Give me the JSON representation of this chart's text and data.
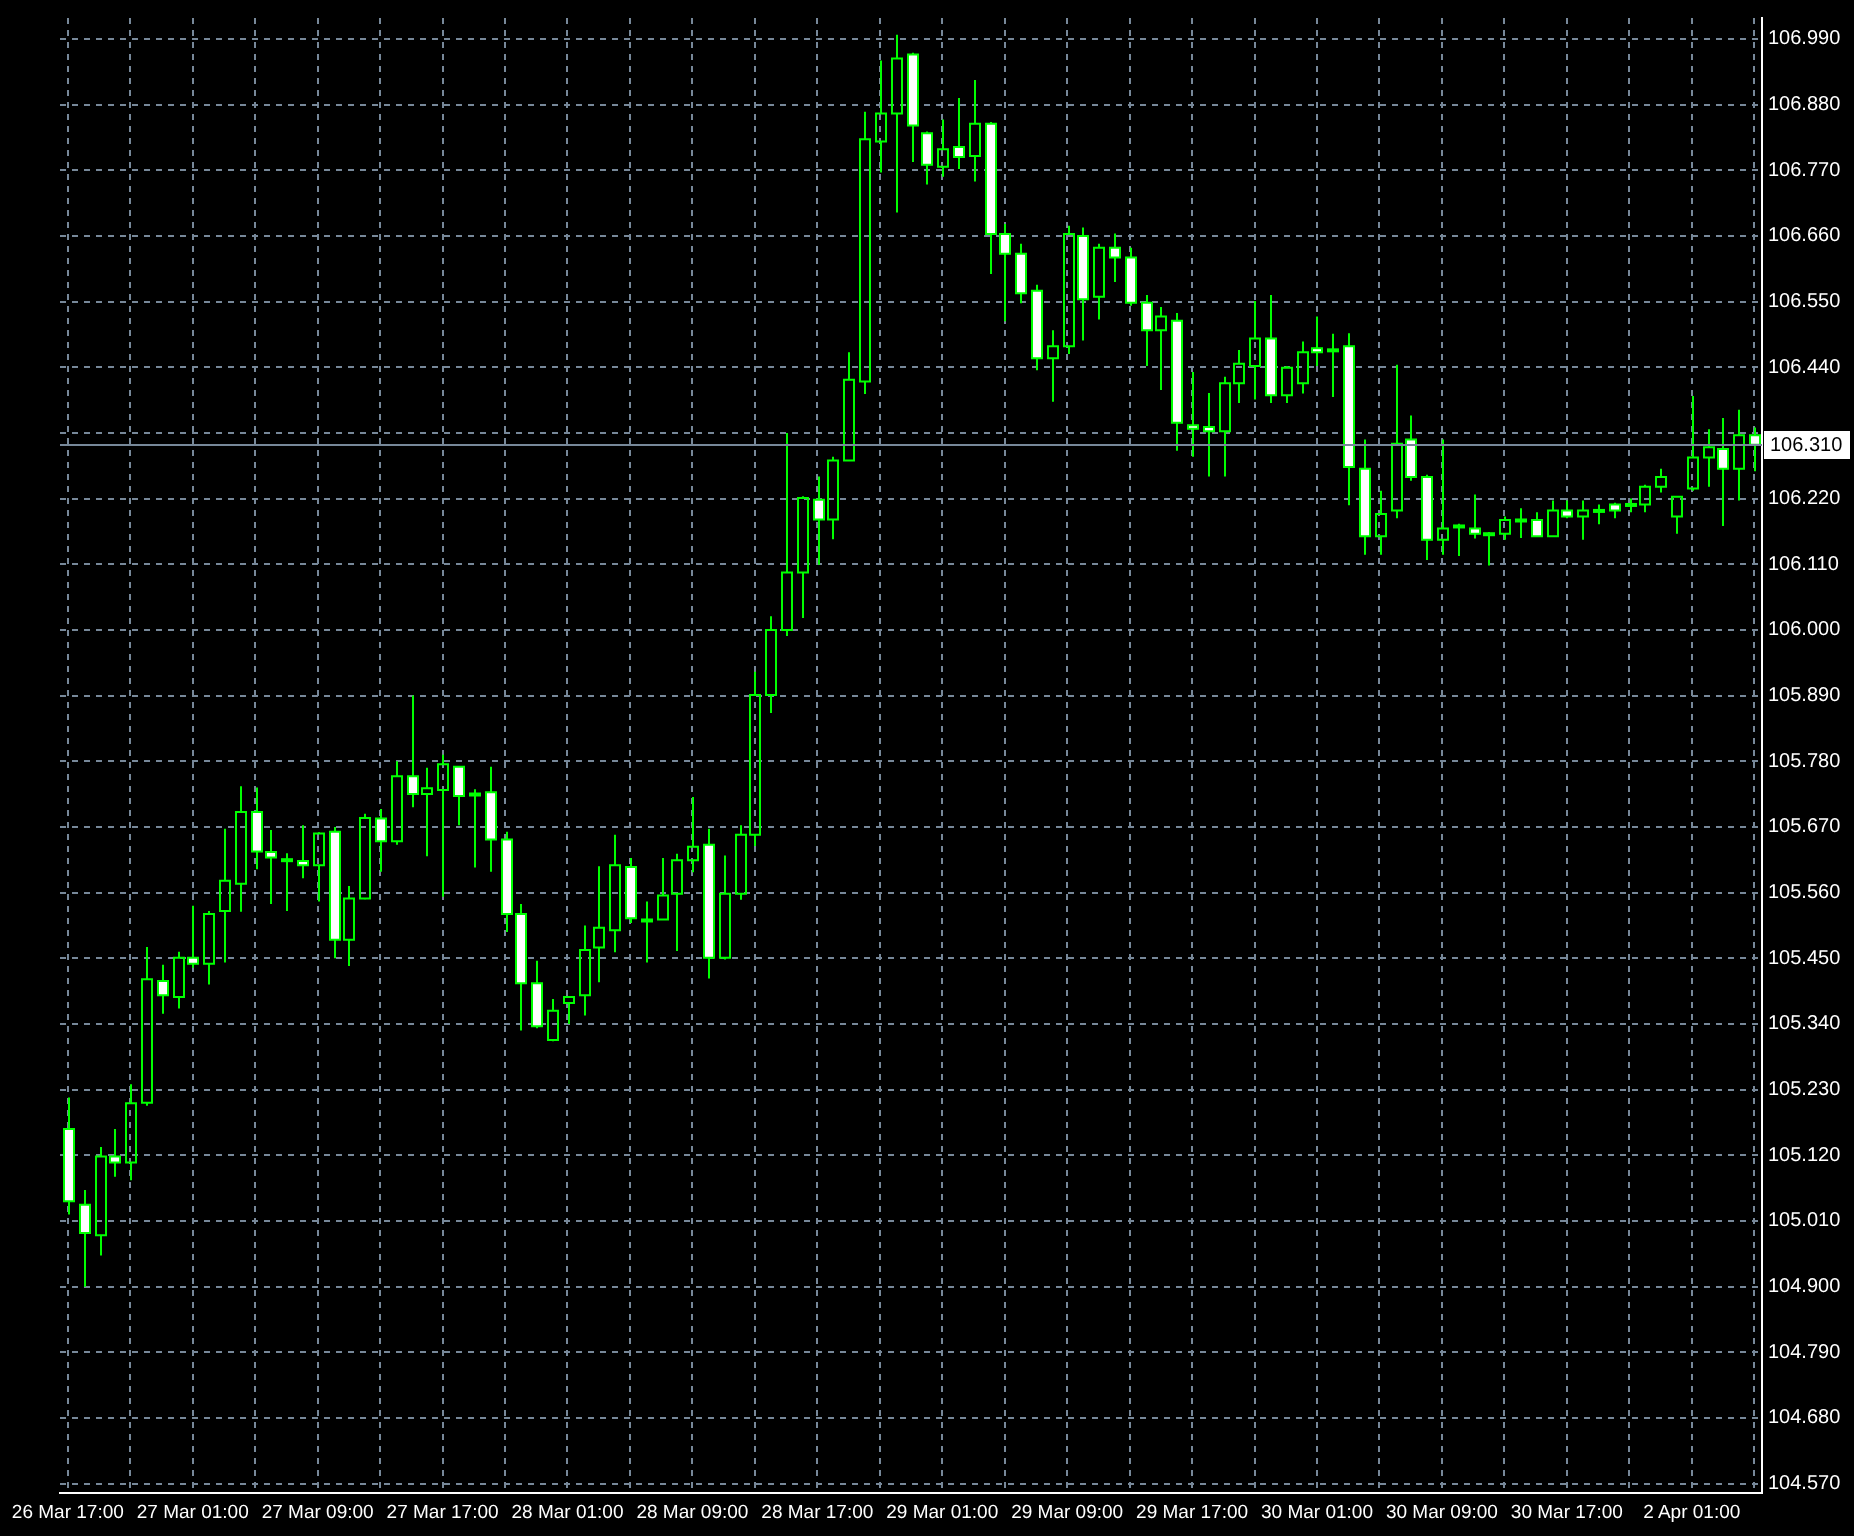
{
  "chart_data": {
    "type": "candlestick",
    "color": "#00ff00",
    "categories": [
      "26 Mar 17:00",
      null,
      null,
      null,
      null,
      null,
      null,
      null,
      "27 Mar 01:00",
      null,
      null,
      null,
      null,
      null,
      null,
      null,
      "27 Mar 09:00",
      null,
      null,
      null,
      null,
      null,
      null,
      null,
      "27 Mar 17:00",
      null,
      null,
      null,
      null,
      null,
      null,
      null,
      "28 Mar 01:00",
      null,
      null,
      null,
      null,
      null,
      null,
      null,
      "28 Mar 09:00",
      null,
      null,
      null,
      null,
      null,
      null,
      null,
      "28 Mar 17:00",
      null,
      null,
      null,
      null,
      null,
      null,
      null,
      "29 Mar 01:00",
      null,
      null,
      null,
      null,
      null,
      null,
      null,
      "29 Mar 09:00",
      null,
      null,
      null,
      null,
      null,
      null,
      null,
      "29 Mar 17:00",
      null,
      null,
      null,
      null,
      null,
      null,
      null,
      "30 Mar 01:00",
      null,
      null,
      null,
      null,
      null,
      null,
      null,
      "30 Mar 09:00",
      null,
      null,
      null,
      null,
      null,
      null,
      null,
      "30 Mar 17:00",
      null,
      null,
      null,
      null,
      null,
      null,
      null,
      "2 Apr 01:00",
      null,
      null,
      null,
      null
    ],
    "ohlc": [
      [
        105.164,
        105.217,
        105.021,
        105.043
      ],
      [
        105.037,
        105.062,
        104.9,
        104.99
      ],
      [
        104.986,
        105.134,
        104.952,
        105.118
      ],
      [
        105.118,
        105.164,
        105.084,
        105.108
      ],
      [
        105.108,
        105.239,
        105.078,
        105.207
      ],
      [
        105.208,
        105.469,
        105.203,
        105.415
      ],
      [
        105.412,
        105.439,
        105.357,
        105.388
      ],
      [
        105.385,
        105.461,
        105.366,
        105.451
      ],
      [
        105.451,
        105.538,
        105.434,
        105.441
      ],
      [
        105.441,
        105.529,
        105.406,
        105.524
      ],
      [
        105.529,
        105.667,
        105.443,
        105.58
      ],
      [
        105.575,
        105.738,
        105.528,
        105.695
      ],
      [
        105.695,
        105.736,
        105.599,
        105.629
      ],
      [
        105.628,
        105.665,
        105.541,
        105.619
      ],
      [
        105.616,
        105.626,
        105.529,
        105.614
      ],
      [
        105.613,
        105.673,
        105.584,
        105.606
      ],
      [
        105.606,
        105.661,
        105.545,
        105.659
      ],
      [
        105.662,
        105.67,
        105.45,
        105.481
      ],
      [
        105.481,
        105.571,
        105.437,
        105.55
      ],
      [
        105.55,
        105.692,
        105.549,
        105.685
      ],
      [
        105.684,
        105.7,
        105.595,
        105.646
      ],
      [
        105.646,
        105.78,
        105.64,
        105.755
      ],
      [
        105.755,
        105.89,
        105.703,
        105.725
      ],
      [
        105.725,
        105.769,
        105.621,
        105.735
      ],
      [
        105.732,
        105.791,
        105.553,
        105.775
      ],
      [
        105.771,
        105.772,
        105.673,
        105.722
      ],
      [
        105.726,
        105.733,
        105.602,
        105.724
      ],
      [
        105.728,
        105.771,
        105.595,
        105.649
      ],
      [
        105.649,
        105.662,
        105.494,
        105.524
      ],
      [
        105.524,
        105.541,
        105.329,
        105.408
      ],
      [
        105.408,
        105.446,
        105.333,
        105.336
      ],
      [
        105.313,
        105.382,
        105.311,
        105.362
      ],
      [
        105.375,
        105.386,
        105.34,
        105.385
      ],
      [
        105.388,
        105.505,
        105.354,
        105.464
      ],
      [
        105.468,
        105.604,
        105.41,
        105.501
      ],
      [
        105.497,
        105.657,
        105.46,
        105.606
      ],
      [
        105.603,
        105.618,
        105.509,
        105.517
      ],
      [
        105.515,
        105.545,
        105.443,
        105.513
      ],
      [
        105.515,
        105.618,
        105.514,
        105.555
      ],
      [
        105.558,
        105.625,
        105.462,
        105.614
      ],
      [
        105.614,
        105.72,
        105.594,
        105.637
      ],
      [
        105.64,
        105.667,
        105.416,
        105.451
      ],
      [
        105.451,
        105.622,
        105.448,
        105.558
      ],
      [
        105.558,
        105.673,
        105.548,
        105.657
      ],
      [
        105.657,
        105.93,
        105.638,
        105.891
      ],
      [
        105.891,
        106.023,
        105.861,
        106.0
      ],
      [
        106.0,
        106.33,
        105.99,
        106.096
      ],
      [
        106.096,
        106.224,
        106.02,
        106.221
      ],
      [
        106.218,
        106.257,
        106.109,
        106.185
      ],
      [
        106.185,
        106.29,
        106.152,
        106.284
      ],
      [
        106.284,
        106.465,
        106.283,
        106.419
      ],
      [
        106.416,
        106.868,
        106.395,
        106.822
      ],
      [
        106.818,
        106.954,
        106.766,
        106.865
      ],
      [
        106.865,
        106.997,
        106.699,
        106.957
      ],
      [
        106.964,
        106.967,
        106.784,
        106.845
      ],
      [
        106.832,
        106.835,
        106.746,
        106.779
      ],
      [
        106.776,
        106.855,
        106.759,
        106.805
      ],
      [
        106.809,
        106.891,
        106.772,
        106.792
      ],
      [
        106.794,
        106.921,
        106.751,
        106.848
      ],
      [
        106.848,
        106.851,
        106.596,
        106.663
      ],
      [
        106.663,
        106.68,
        106.517,
        106.63
      ],
      [
        106.63,
        106.647,
        106.547,
        106.564
      ],
      [
        106.568,
        106.578,
        106.435,
        106.455
      ],
      [
        106.455,
        106.502,
        106.382,
        106.475
      ],
      [
        106.475,
        106.677,
        106.462,
        106.663
      ],
      [
        106.66,
        106.674,
        106.485,
        106.554
      ],
      [
        106.558,
        106.647,
        106.52,
        106.64
      ],
      [
        106.64,
        106.664,
        106.583,
        106.624
      ],
      [
        106.624,
        106.64,
        106.543,
        106.548
      ],
      [
        106.548,
        106.561,
        106.442,
        106.502
      ],
      [
        106.502,
        106.541,
        106.402,
        106.525
      ],
      [
        106.518,
        106.531,
        106.3,
        106.347
      ],
      [
        106.343,
        106.432,
        106.29,
        106.337
      ],
      [
        106.34,
        106.397,
        106.257,
        106.333
      ],
      [
        106.333,
        106.424,
        106.257,
        106.413
      ],
      [
        106.413,
        106.469,
        106.38,
        106.446
      ],
      [
        106.442,
        106.551,
        106.386,
        106.488
      ],
      [
        106.488,
        106.561,
        106.38,
        106.393
      ],
      [
        106.393,
        106.442,
        106.38,
        106.439
      ],
      [
        106.413,
        106.483,
        106.396,
        106.465
      ],
      [
        106.472,
        106.525,
        106.442,
        106.465
      ],
      [
        106.47,
        106.496,
        106.39,
        106.468
      ],
      [
        106.475,
        106.497,
        106.209,
        106.273
      ],
      [
        106.27,
        106.319,
        106.126,
        106.157
      ],
      [
        106.157,
        106.233,
        106.126,
        106.194
      ],
      [
        106.2,
        106.444,
        106.187,
        106.312
      ],
      [
        106.319,
        106.359,
        106.25,
        106.256
      ],
      [
        106.256,
        106.26,
        106.117,
        106.151
      ],
      [
        106.151,
        106.319,
        106.126,
        106.17
      ],
      [
        106.175,
        106.178,
        106.124,
        106.173
      ],
      [
        106.17,
        106.227,
        106.153,
        106.161
      ],
      [
        106.162,
        106.164,
        106.108,
        106.16
      ],
      [
        106.161,
        106.19,
        106.151,
        106.184
      ],
      [
        106.185,
        106.204,
        106.154,
        106.183
      ],
      [
        106.184,
        106.197,
        106.156,
        106.157
      ],
      [
        106.157,
        106.217,
        106.156,
        106.2
      ],
      [
        106.2,
        106.217,
        106.187,
        106.19
      ],
      [
        106.19,
        106.217,
        106.151,
        106.2
      ],
      [
        106.201,
        106.21,
        106.177,
        106.199
      ],
      [
        106.21,
        106.213,
        106.187,
        106.2
      ],
      [
        106.211,
        106.22,
        106.197,
        106.209
      ],
      [
        106.21,
        106.243,
        106.197,
        106.24
      ],
      [
        106.24,
        106.27,
        106.23,
        106.256
      ],
      [
        106.19,
        106.224,
        106.161,
        106.223
      ],
      [
        106.237,
        106.392,
        106.233,
        106.289
      ],
      [
        106.289,
        106.336,
        106.24,
        106.306
      ],
      [
        106.303,
        106.355,
        106.174,
        106.27
      ],
      [
        106.27,
        106.369,
        106.217,
        106.326
      ],
      [
        106.326,
        106.339,
        106.266,
        106.31
      ]
    ],
    "colors": [
      "#ffffff",
      "#ffffff",
      "#00ff00",
      "#ffffff",
      "#00ff00",
      "#00ff00",
      "#ffffff",
      "#00ff00",
      "#ffffff",
      "#00ff00",
      "#00ff00",
      "#00ff00",
      "#ffffff",
      "#ffffff",
      "#ffffff",
      "#ffffff",
      "#00ff00",
      "#ffffff",
      "#00ff00",
      "#00ff00",
      "#ffffff",
      "#00ff00",
      "#ffffff",
      "#00ff00",
      "#00ff00",
      "#ffffff",
      "#ffffff",
      "#ffffff",
      "#ffffff",
      "#ffffff",
      "#ffffff",
      "#00ff00",
      "#00ff00",
      "#00ff00",
      "#00ff00",
      "#00ff00",
      "#ffffff",
      "#ffffff",
      "#00ff00",
      "#00ff00",
      "#00ff00",
      "#ffffff",
      "#00ff00",
      "#00ff00",
      "#00ff00",
      "#00ff00",
      "#00ff00",
      "#00ff00",
      "#ffffff",
      "#00ff00",
      "#00ff00",
      "#00ff00",
      "#00ff00",
      "#00ff00",
      "#ffffff",
      "#ffffff",
      "#00ff00",
      "#ffffff",
      "#00ff00",
      "#ffffff",
      "#ffffff",
      "#ffffff",
      "#ffffff",
      "#00ff00",
      "#00ff00",
      "#ffffff",
      "#00ff00",
      "#ffffff",
      "#ffffff",
      "#ffffff",
      "#00ff00",
      "#ffffff",
      "#ffffff",
      "#ffffff",
      "#00ff00",
      "#00ff00",
      "#00ff00",
      "#ffffff",
      "#00ff00",
      "#00ff00",
      "#ffffff",
      "#ffffff",
      "#ffffff",
      "#ffffff",
      "#00ff00",
      "#00ff00",
      "#ffffff",
      "#ffffff",
      "#00ff00",
      "#ffffff",
      "#ffffff",
      "#ffffff",
      "#00ff00",
      "#ffffff",
      "#ffffff",
      "#00ff00",
      "#ffffff",
      "#00ff00",
      "#ffffff",
      "#ffffff",
      "#ffffff",
      "#00ff00",
      "#00ff00",
      "#00ff00",
      "#00ff00",
      "#00ff00",
      "#ffffff",
      "#00ff00",
      "#ffffff"
    ],
    "ylim": [
      104.554,
      107.025
    ],
    "yticks": [
      {
        "value": 104.57,
        "label": "104.570"
      },
      {
        "value": 104.68,
        "label": "104.680"
      },
      {
        "value": 104.79,
        "label": "104.790"
      },
      {
        "value": 104.9,
        "label": "104.900"
      },
      {
        "value": 105.01,
        "label": "105.010"
      },
      {
        "value": 105.12,
        "label": "105.120"
      },
      {
        "value": 105.23,
        "label": "105.230"
      },
      {
        "value": 105.34,
        "label": "105.340"
      },
      {
        "value": 105.45,
        "label": "105.450"
      },
      {
        "value": 105.56,
        "label": "105.560"
      },
      {
        "value": 105.67,
        "label": "105.670"
      },
      {
        "value": 105.78,
        "label": "105.780"
      },
      {
        "value": 105.89,
        "label": "105.890"
      },
      {
        "value": 106.0,
        "label": "106.000"
      },
      {
        "value": 106.11,
        "label": "106.110"
      },
      {
        "value": 106.22,
        "label": "106.220"
      },
      {
        "value": 106.33,
        "label": null
      },
      {
        "value": 106.44,
        "label": "106.440"
      },
      {
        "value": 106.55,
        "label": "106.550"
      },
      {
        "value": 106.66,
        "label": "106.660"
      },
      {
        "value": 106.77,
        "label": "106.770"
      },
      {
        "value": 106.88,
        "label": "106.880"
      },
      {
        "value": 106.99,
        "label": "106.990"
      }
    ],
    "ref_lines": [
      {
        "axis": "y",
        "value": 106.31,
        "label": "106.310",
        "color": "#778899"
      }
    ],
    "grid": true,
    "legend": false
  }
}
